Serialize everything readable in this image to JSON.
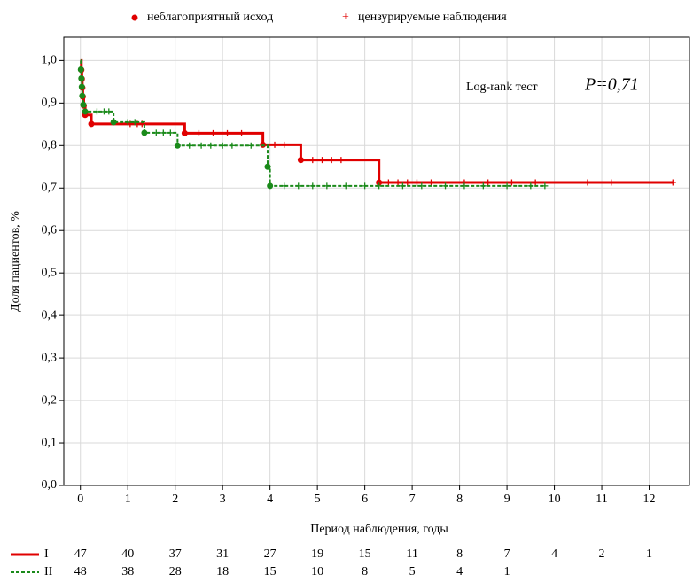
{
  "chart_data": {
    "type": "kaplan-meier",
    "legend": {
      "event": "неблагоприятный исход",
      "censored": "цензурируемые наблюдения",
      "marker_color": "#e00000"
    },
    "annotation": {
      "text": "Log-rank тест",
      "p": "P=0,71"
    },
    "xlabel": "Период наблюдения, годы",
    "ylabel": "Доля пациентов, %",
    "xlim": [
      -0.35,
      12.85
    ],
    "ylim": [
      0,
      1.055
    ],
    "xticks": [
      0,
      1,
      2,
      3,
      4,
      5,
      6,
      7,
      8,
      9,
      10,
      11,
      12
    ],
    "yticks": [
      {
        "value": 0,
        "label": "0,0"
      },
      {
        "value": 0.1,
        "label": "0,1"
      },
      {
        "value": 0.2,
        "label": "0,2"
      },
      {
        "value": 0.3,
        "label": "0,3"
      },
      {
        "value": 0.4,
        "label": "0,4"
      },
      {
        "value": 0.5,
        "label": "0,5"
      },
      {
        "value": 0.6,
        "label": "0,6"
      },
      {
        "value": 0.7,
        "label": "0,7"
      },
      {
        "value": 0.8,
        "label": "0,8"
      },
      {
        "value": 0.9,
        "label": "0,9"
      },
      {
        "value": 1.0,
        "label": "1,0"
      }
    ],
    "grid": true,
    "series": [
      {
        "name": "I",
        "color": "#e00000",
        "dash": false,
        "x": [
          0,
          0.02,
          0.03,
          0.04,
          0.05,
          0.07,
          0.1,
          0.23,
          2.2,
          3.85,
          4.65,
          6.3,
          12.5
        ],
        "values": [
          1.0,
          0.978,
          0.957,
          0.936,
          0.915,
          0.894,
          0.872,
          0.851,
          0.829,
          0.802,
          0.766,
          0.713,
          0.713
        ],
        "censored": [
          1.05,
          1.2,
          1.3,
          2.5,
          2.8,
          3.1,
          3.4,
          4.1,
          4.3,
          4.9,
          5.1,
          5.3,
          5.5,
          6.5,
          6.7,
          6.9,
          7.1,
          7.4,
          8.1,
          8.6,
          9.1,
          9.6,
          10.7,
          11.2,
          12.5
        ],
        "at_risk": [
          47,
          40,
          37,
          31,
          27,
          19,
          15,
          11,
          8,
          7,
          4,
          2,
          1
        ]
      },
      {
        "name": "II",
        "color": "#1a8a1a",
        "dash": true,
        "x": [
          0,
          0.01,
          0.02,
          0.03,
          0.04,
          0.06,
          0.1,
          0.7,
          1.35,
          2.05,
          3.95,
          4.0,
          9.8
        ],
        "values": [
          1.0,
          0.979,
          0.958,
          0.938,
          0.917,
          0.896,
          0.88,
          0.855,
          0.83,
          0.8,
          0.75,
          0.705,
          0.705
        ],
        "censored": [
          0.35,
          0.5,
          0.6,
          1.0,
          1.15,
          1.6,
          1.75,
          1.9,
          2.3,
          2.55,
          2.75,
          3.0,
          3.2,
          3.6,
          4.3,
          4.6,
          4.9,
          5.2,
          5.6,
          6.0,
          6.3,
          6.8,
          7.2,
          7.7,
          8.1,
          8.5,
          9.0,
          9.5,
          9.8
        ],
        "at_risk": [
          48,
          38,
          28,
          18,
          15,
          10,
          8,
          5,
          4,
          1
        ]
      }
    ]
  }
}
